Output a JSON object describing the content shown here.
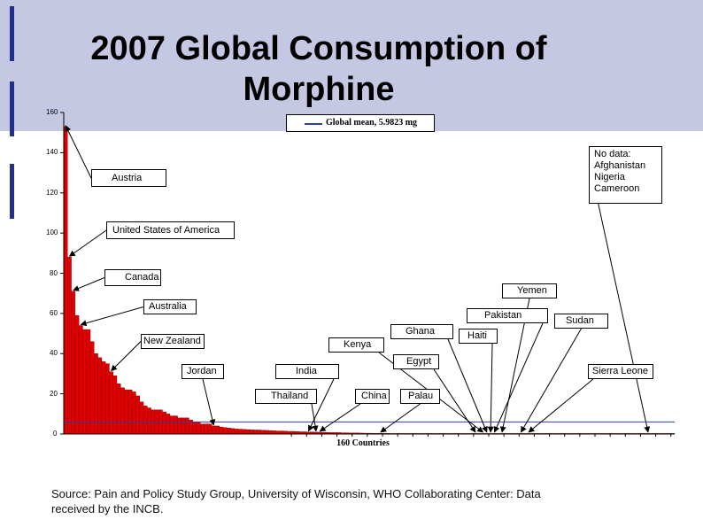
{
  "title": "2007 Global Consumption of Morphine",
  "source": "Source: Pain and Policy Study Group, University of  Wisconsin,  WHO Collaborating Center: Data received by the INCB.",
  "colors": {
    "bar": "#e00000",
    "bar_edge": "#7a0000",
    "mean_line": "#2b3fa4",
    "slide_band": "#c4c8e3",
    "accent_bar": "#23308a"
  },
  "chart_data": {
    "type": "bar",
    "title": "2007 Global Consumption of Morphine",
    "xlabel": "160 Countries",
    "ylabel": "",
    "ylim": [
      0,
      160
    ],
    "yticks": [
      0,
      20,
      40,
      60,
      80,
      100,
      120,
      140,
      160
    ],
    "ytick_labels": [
      "0",
      "20",
      "40",
      "60",
      "80",
      "100",
      "120",
      "140",
      "160"
    ],
    "mean": {
      "label": "Global mean, 5.9823 mg",
      "value": 5.9823
    },
    "values": [
      153,
      88,
      71,
      59,
      54,
      52,
      52,
      46,
      40,
      38,
      36,
      35,
      31,
      29,
      25,
      23,
      22,
      22,
      21,
      19,
      16,
      14,
      13,
      12,
      12,
      12,
      11,
      10,
      9,
      9,
      8,
      8,
      8,
      7,
      6,
      6,
      5,
      5,
      5,
      4,
      4,
      3.5,
      3.2,
      3,
      2.8,
      2.5,
      2.4,
      2.3,
      2.2,
      2.1,
      2,
      2,
      1.9,
      1.8,
      1.7,
      1.6,
      1.5,
      1.5,
      1.4,
      1.3,
      1.3,
      1.2,
      1.1,
      1.1,
      1,
      1,
      0.9,
      0.9,
      0.8,
      0.8,
      0.7,
      0.7,
      0.7,
      0.6,
      0.6,
      0.5,
      0.5,
      0.5,
      0.45,
      0.4,
      0.4,
      0.35,
      0.35,
      0.3,
      0.3,
      0.3,
      0.25,
      0.25,
      0.2,
      0.2,
      0.2,
      0.18,
      0.16,
      0.15,
      0.14,
      0.13,
      0.12,
      0.11,
      0.1,
      0.1,
      0.09,
      0.08,
      0.08,
      0.07,
      0.07,
      0.06,
      0.06,
      0.05,
      0.05,
      0.05,
      0.04,
      0.04,
      0.04,
      0.03,
      0.03,
      0.03,
      0.03,
      0.02,
      0.02,
      0.02,
      0.02,
      0.02,
      0.01,
      0.01,
      0.01,
      0.01,
      0.01,
      0.01,
      0.01,
      0.01,
      0,
      0,
      0,
      0,
      0,
      0,
      0,
      0,
      0,
      0,
      0,
      0,
      0,
      0,
      0,
      0,
      0,
      0,
      0,
      0,
      0,
      0,
      0,
      0,
      0,
      0,
      0,
      0,
      0,
      0,
      0
    ],
    "annotations": [
      {
        "label": "Austria",
        "bar_index": 0
      },
      {
        "label": "United States of America",
        "bar_index": 1
      },
      {
        "label": "Canada",
        "bar_index": 2
      },
      {
        "label": "Australia",
        "bar_index": 4
      },
      {
        "label": "New Zealand",
        "bar_index": 12
      },
      {
        "label": "Jordan",
        "bar_index": 39
      },
      {
        "label": "India",
        "bar_index": 64
      },
      {
        "label": "Thailand",
        "bar_index": 66
      },
      {
        "label": "China",
        "bar_index": 67
      },
      {
        "label": "Palau",
        "bar_index": 83
      },
      {
        "label": "Egypt",
        "bar_index": 108
      },
      {
        "label": "Kenya",
        "bar_index": 110
      },
      {
        "label": "Ghana",
        "bar_index": 111
      },
      {
        "label": "Haiti",
        "bar_index": 112
      },
      {
        "label": "Pakistan",
        "bar_index": 113
      },
      {
        "label": "Yemen",
        "bar_index": 115
      },
      {
        "label": "Sudan",
        "bar_index": 120
      },
      {
        "label": "Sierra Leone",
        "bar_index": 122
      }
    ],
    "no_data_box": {
      "title": "No data:",
      "countries": [
        "Afghanistan",
        "Nigeria",
        "Cameroon"
      ]
    }
  }
}
